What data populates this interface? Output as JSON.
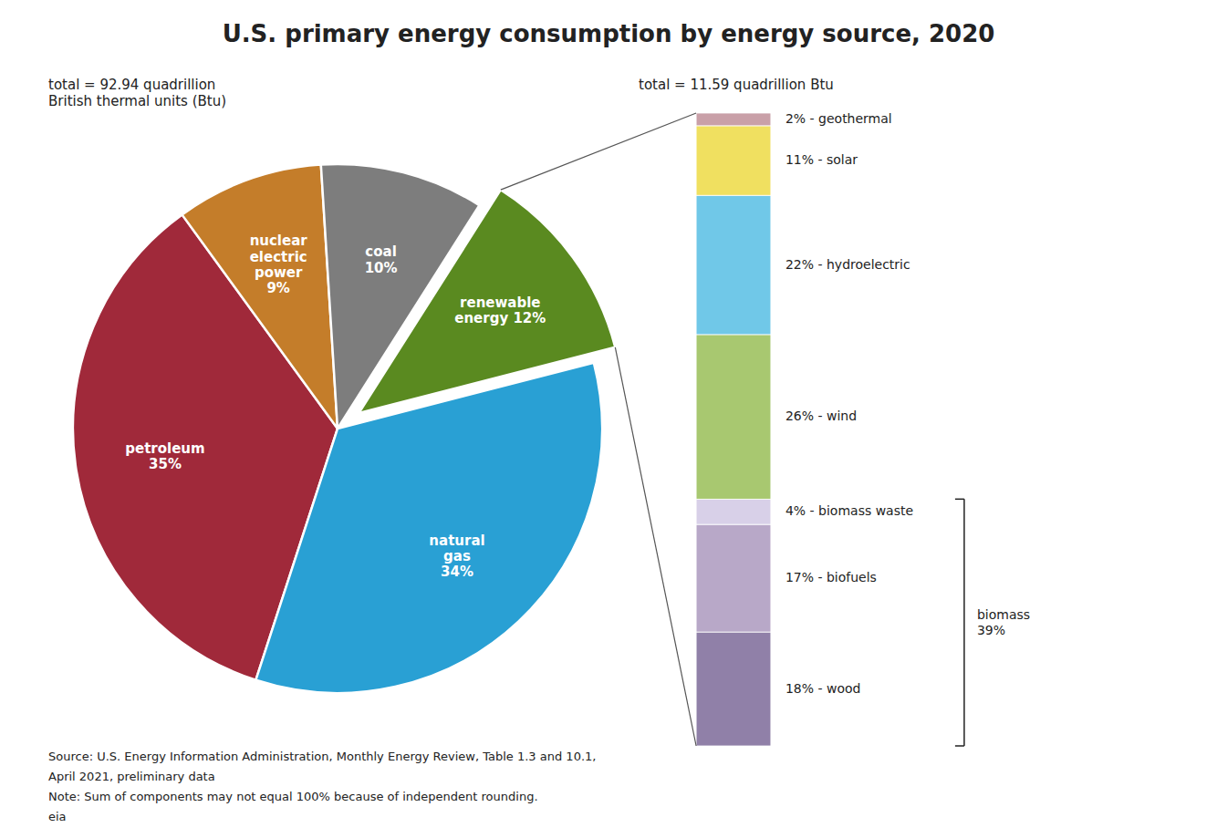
{
  "chart_data": [
    {
      "type": "pie",
      "title": "U.S. primary energy consumption by energy source, 2020",
      "subtitle": "total = 92.94 quadrillion\nBritish thermal units (Btu)",
      "categories": [
        "petroleum\n35%",
        "nuclear\nelectric\npower\n9%",
        "coal\n10%",
        "renewable\nenergy 12%",
        "natural\ngas\n34%"
      ],
      "values": [
        35,
        9,
        10,
        12,
        34
      ],
      "colors": [
        "#a0293a",
        "#c47d2a",
        "#7d7d7d",
        "#5a8a20",
        "#29a0d4"
      ],
      "annotations": [
        "Source: U.S. Energy Information Administration, Monthly Energy Review, Table 1.3 and 10.1,",
        "April 2021, preliminary data",
        "Note: Sum of components may not equal 100% because of independent rounding.",
        "eia"
      ]
    },
    {
      "type": "bar",
      "stacked": true,
      "subtitle": "total = 11.59 quadrillion Btu",
      "categories": [
        null
      ],
      "series": [
        {
          "name": "2% - geothermal",
          "color": "#c9a0a8",
          "values": [
            2
          ]
        },
        {
          "name": "11% - solar",
          "color": "#f0e060",
          "values": [
            11
          ]
        },
        {
          "name": "22% - hydroelectric",
          "color": "#70c8e8",
          "values": [
            22
          ]
        },
        {
          "name": "26% - wind",
          "color": "#a8c870",
          "values": [
            26
          ]
        },
        {
          "name": "4% - biomass waste",
          "color": "#d8d0e8",
          "values": [
            4
          ]
        },
        {
          "name": "17% - biofuels",
          "color": "#b8a8c8",
          "values": [
            17
          ]
        },
        {
          "name": "18% - wood",
          "color": "#9080a8",
          "values": [
            18
          ]
        }
      ],
      "ylim": [
        0,
        100
      ],
      "tick_labels": false,
      "annotations": [
        {
          "text": "biomass\n39%",
          "value": 39
        }
      ]
    }
  ]
}
